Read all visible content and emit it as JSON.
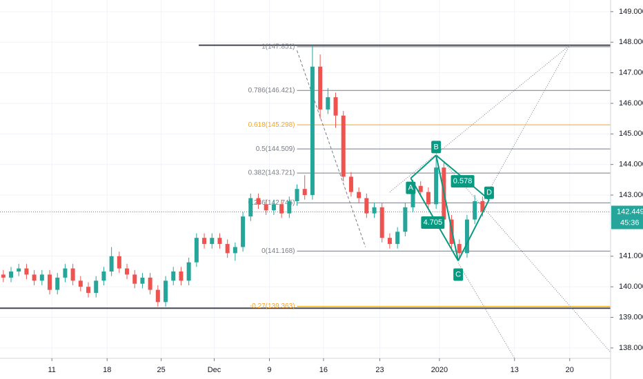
{
  "chart_data": {
    "type": "candlestick",
    "xlim": [
      0,
      55.3
    ],
    "ylim": [
      137.66,
      149.38
    ],
    "xticks": [
      {
        "value": 4.7,
        "label": "11"
      },
      {
        "value": 9.7,
        "label": "18"
      },
      {
        "value": 14.6,
        "label": "25"
      },
      {
        "value": 19.4,
        "label": "Dec"
      },
      {
        "value": 24.4,
        "label": "9"
      },
      {
        "value": 29.3,
        "label": "16"
      },
      {
        "value": 34.4,
        "label": "23"
      },
      {
        "value": 39.8,
        "label": "2020"
      },
      {
        "value": 46.6,
        "label": "13"
      },
      {
        "value": 51.6,
        "label": "20"
      }
    ],
    "yticks": [
      {
        "value": 149,
        "label": "149.000"
      },
      {
        "value": 148,
        "label": "148.000"
      },
      {
        "value": 147,
        "label": "147.000"
      },
      {
        "value": 146,
        "label": "146.000"
      },
      {
        "value": 145,
        "label": "145.000"
      },
      {
        "value": 144,
        "label": "144.000"
      },
      {
        "value": 143,
        "label": "143.000"
      },
      {
        "value": 141,
        "label": "141.000"
      },
      {
        "value": 140,
        "label": "140.000"
      },
      {
        "value": 139,
        "label": "139.000"
      },
      {
        "value": 138,
        "label": "138.000"
      }
    ],
    "grid": true,
    "up_color": "#26a69a",
    "down_color": "#ef5350",
    "x": [
      0.3,
      1,
      1.7,
      2.4,
      3.1,
      3.8,
      4.5,
      5.2,
      5.9,
      6.6,
      7.3,
      8,
      8.7,
      9.4,
      10.1,
      10.8,
      11.5,
      12.2,
      12.9,
      13.6,
      14.3,
      15,
      15.7,
      16.4,
      17.1,
      17.8,
      18.5,
      19.2,
      19.9,
      20.6,
      21.3,
      22,
      22.7,
      23.4,
      24.1,
      24.8,
      25.5,
      26.2,
      26.9,
      27.6,
      28.3,
      29,
      29.7,
      30.4,
      31.1,
      31.8,
      32.5,
      33.2,
      33.9,
      34.6,
      35.3,
      36,
      36.7,
      37.4,
      38.1,
      38.8,
      39.5,
      40.2,
      40.9,
      41.6,
      42.3,
      43,
      43.7
    ],
    "open": [
      140.4,
      140.3,
      140.5,
      140.6,
      140.4,
      140.2,
      140.4,
      139.9,
      140.3,
      140.6,
      140.2,
      140.0,
      139.8,
      140.2,
      140.5,
      141.0,
      140.6,
      140.4,
      140.1,
      140.3,
      139.9,
      139.5,
      140.2,
      140.5,
      140.2,
      140.8,
      141.6,
      141.4,
      141.6,
      141.4,
      141.1,
      141.3,
      142.3,
      142.9,
      142.7,
      142.5,
      142.7,
      142.4,
      142.8,
      143.2,
      143.0,
      147.2,
      145.8,
      146.2,
      145.6,
      143.6,
      143.1,
      142.9,
      142.4,
      142.6,
      141.6,
      141.4,
      141.8,
      142.6,
      143.3,
      143.1,
      142.7,
      143.9,
      142.2,
      141.4,
      141.1,
      142.2,
      142.8
    ],
    "high": [
      140.55,
      140.65,
      140.75,
      140.75,
      140.55,
      140.55,
      140.55,
      140.45,
      140.75,
      140.75,
      140.35,
      140.15,
      140.35,
      140.65,
      141.3,
      141.15,
      140.75,
      140.55,
      140.45,
      140.45,
      140.05,
      140.35,
      140.65,
      140.65,
      140.95,
      141.75,
      141.75,
      141.75,
      141.75,
      141.55,
      141.45,
      142.45,
      143.05,
      143.05,
      142.85,
      142.85,
      142.85,
      142.95,
      143.35,
      143.65,
      147.9,
      147.6,
      146.5,
      146.35,
      145.75,
      143.75,
      143.25,
      143.05,
      142.75,
      142.75,
      141.75,
      141.95,
      142.75,
      143.5,
      143.45,
      143.25,
      144.3,
      144.05,
      142.35,
      141.55,
      142.35,
      143.0,
      142.95
    ],
    "low": [
      140.15,
      140.15,
      140.35,
      140.25,
      140.05,
      140.05,
      139.75,
      139.75,
      140.15,
      140.05,
      139.85,
      139.65,
      139.65,
      140.05,
      140.35,
      140.45,
      140.25,
      139.95,
      139.95,
      139.75,
      139.35,
      139.35,
      140.05,
      140.05,
      140.05,
      140.65,
      141.25,
      141.25,
      141.25,
      140.95,
      140.85,
      141.15,
      142.15,
      142.55,
      142.35,
      142.35,
      142.25,
      142.25,
      142.65,
      142.85,
      142.85,
      145.5,
      145.65,
      145.2,
      143.45,
      142.95,
      142.75,
      142.25,
      142.25,
      141.45,
      141.25,
      141.25,
      141.65,
      142.45,
      142.95,
      142.55,
      142.55,
      142.05,
      141.25,
      140.9,
      140.95,
      142.05,
      142.3
    ],
    "close": [
      140.3,
      140.5,
      140.6,
      140.4,
      140.2,
      140.4,
      139.9,
      140.3,
      140.6,
      140.2,
      140.0,
      139.8,
      140.2,
      140.5,
      141.0,
      140.6,
      140.4,
      140.1,
      140.3,
      139.9,
      139.5,
      140.2,
      140.5,
      140.2,
      140.8,
      141.6,
      141.4,
      141.6,
      141.4,
      141.1,
      141.3,
      142.3,
      142.9,
      142.7,
      142.5,
      142.7,
      142.4,
      142.8,
      143.2,
      143.0,
      147.2,
      145.8,
      146.2,
      145.6,
      143.6,
      143.1,
      142.9,
      142.4,
      142.6,
      141.6,
      141.4,
      141.8,
      142.6,
      143.3,
      143.1,
      142.7,
      143.9,
      142.2,
      141.4,
      141.1,
      142.2,
      142.8,
      142.45
    ],
    "last_price": {
      "value": 142.449,
      "label": "142.449",
      "countdown": "45:36",
      "color": "#26a69a"
    },
    "fib": {
      "x0": 26.9,
      "levels": [
        {
          "label": "1(147.851)",
          "value": 147.851,
          "color": "#787b86"
        },
        {
          "label": "0.786(146.421)",
          "value": 146.421,
          "color": "#787b86"
        },
        {
          "label": "0.618(145.298)",
          "value": 145.298,
          "color": "#f7a21b"
        },
        {
          "label": "0.5(144.509)",
          "value": 144.509,
          "color": "#787b86"
        },
        {
          "label": "0.382(143.721)",
          "value": 143.721,
          "color": "#787b86"
        },
        {
          "label": "0.236(142.745)",
          "value": 142.745,
          "color": "#787b86"
        },
        {
          "label": "0(141.168)",
          "value": 141.168,
          "color": "#787b86"
        },
        {
          "label": "-0.27(139.363)",
          "value": 139.363,
          "color": "#f7a21b"
        }
      ]
    },
    "hlines": [
      {
        "x0": 18,
        "value": 147.9,
        "color": "#434651"
      },
      {
        "x0": 0,
        "value": 139.3,
        "color": "#434651"
      }
    ],
    "trendlines": [
      {
        "x": [
          26.9,
          33.1
        ],
        "y": [
          147.73,
          141.3
        ],
        "dash": "4,3"
      },
      {
        "x": [
          35.3,
          51.6
        ],
        "y": [
          143.1,
          147.9
        ],
        "dash": "1,2"
      },
      {
        "x": [
          43.75,
          51.6
        ],
        "y": [
          142.8,
          147.9
        ],
        "dash": "1,2"
      },
      {
        "x": [
          39.5,
          55.3
        ],
        "y": [
          144.35,
          137.86
        ],
        "dash": "1,2"
      },
      {
        "x": [
          41.5,
          46.6
        ],
        "y": [
          140.78,
          137.66
        ],
        "dash": "1,2"
      }
    ],
    "pattern": {
      "color": "#089981",
      "points": [
        {
          "label": "A",
          "x": 37.2,
          "y": 143.55
        },
        {
          "label": "B",
          "x": 39.5,
          "y": 144.3
        },
        {
          "label": "C",
          "x": 41.5,
          "y": 140.85
        },
        {
          "label": "D",
          "x": 44.3,
          "y": 142.85
        }
      ],
      "ratios": [
        {
          "label": "4.705",
          "x": 39.2,
          "y": 142.1
        },
        {
          "label": "0.578",
          "x": 41.9,
          "y": 143.45
        }
      ]
    }
  }
}
